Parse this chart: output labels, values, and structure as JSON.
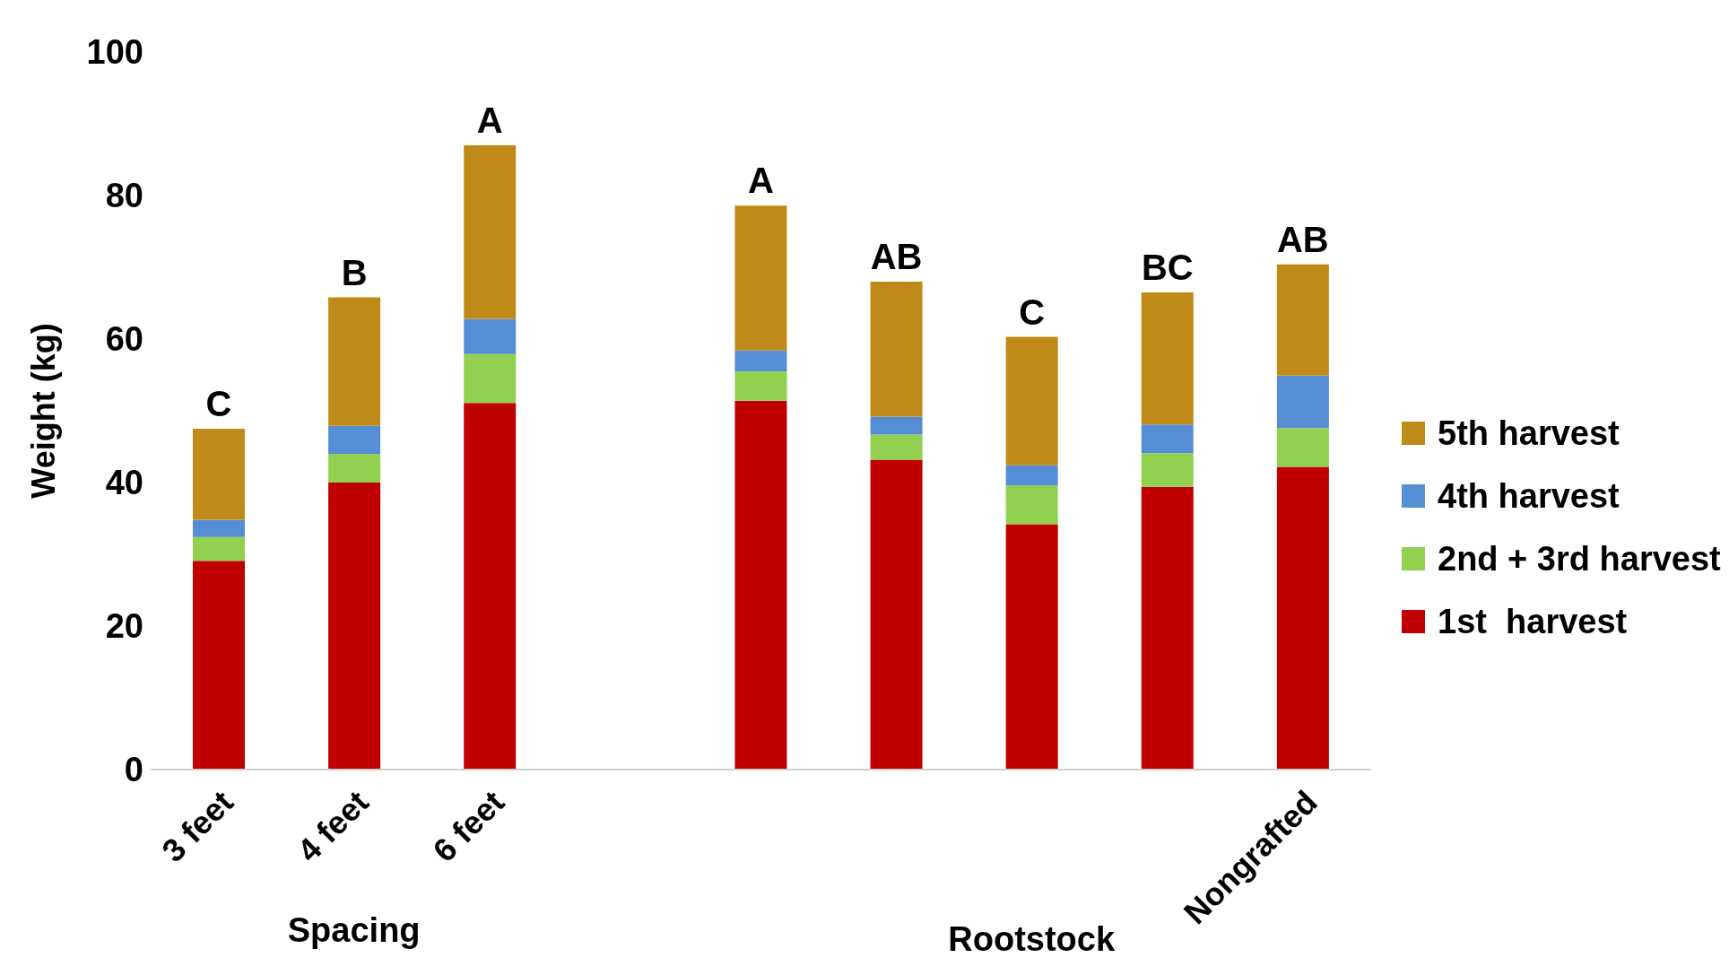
{
  "chart_data": {
    "type": "bar",
    "stacked": true,
    "ylabel": "Weight (kg)",
    "categories": [
      "3 feet",
      "4 feet",
      "6 feet",
      null,
      null,
      null,
      null,
      null,
      "Nongrafted"
    ],
    "series": [
      {
        "name": "1st  harvest",
        "color": "#c00000",
        "values": [
          29.1,
          40.0,
          51.1,
          null,
          51.4,
          43.2,
          34.2,
          39.4,
          42.2
        ]
      },
      {
        "name": "2nd + 3rd harvest",
        "color": "#92d050",
        "values": [
          3.3,
          4.0,
          6.8,
          null,
          4.1,
          3.5,
          5.4,
          4.7,
          5.4
        ]
      },
      {
        "name": "4th harvest",
        "color": "#558ed5",
        "values": [
          2.4,
          3.9,
          4.9,
          null,
          2.9,
          2.5,
          2.8,
          4.0,
          7.3
        ]
      },
      {
        "name": "5th harvest",
        "color": "#bf8a18",
        "values": [
          12.7,
          17.9,
          24.2,
          null,
          20.2,
          18.8,
          17.9,
          18.4,
          15.5
        ],
        "value_labels": [
          "C",
          "B",
          "A",
          null,
          "A",
          "AB",
          "C",
          "BC",
          "AB"
        ]
      }
    ],
    "ylim": [
      0,
      100
    ],
    "yticks": [
      0,
      20,
      40,
      60,
      80,
      100
    ],
    "grid": false,
    "legend": "right",
    "annotations": [
      "Spacing",
      "Rootstock"
    ]
  }
}
